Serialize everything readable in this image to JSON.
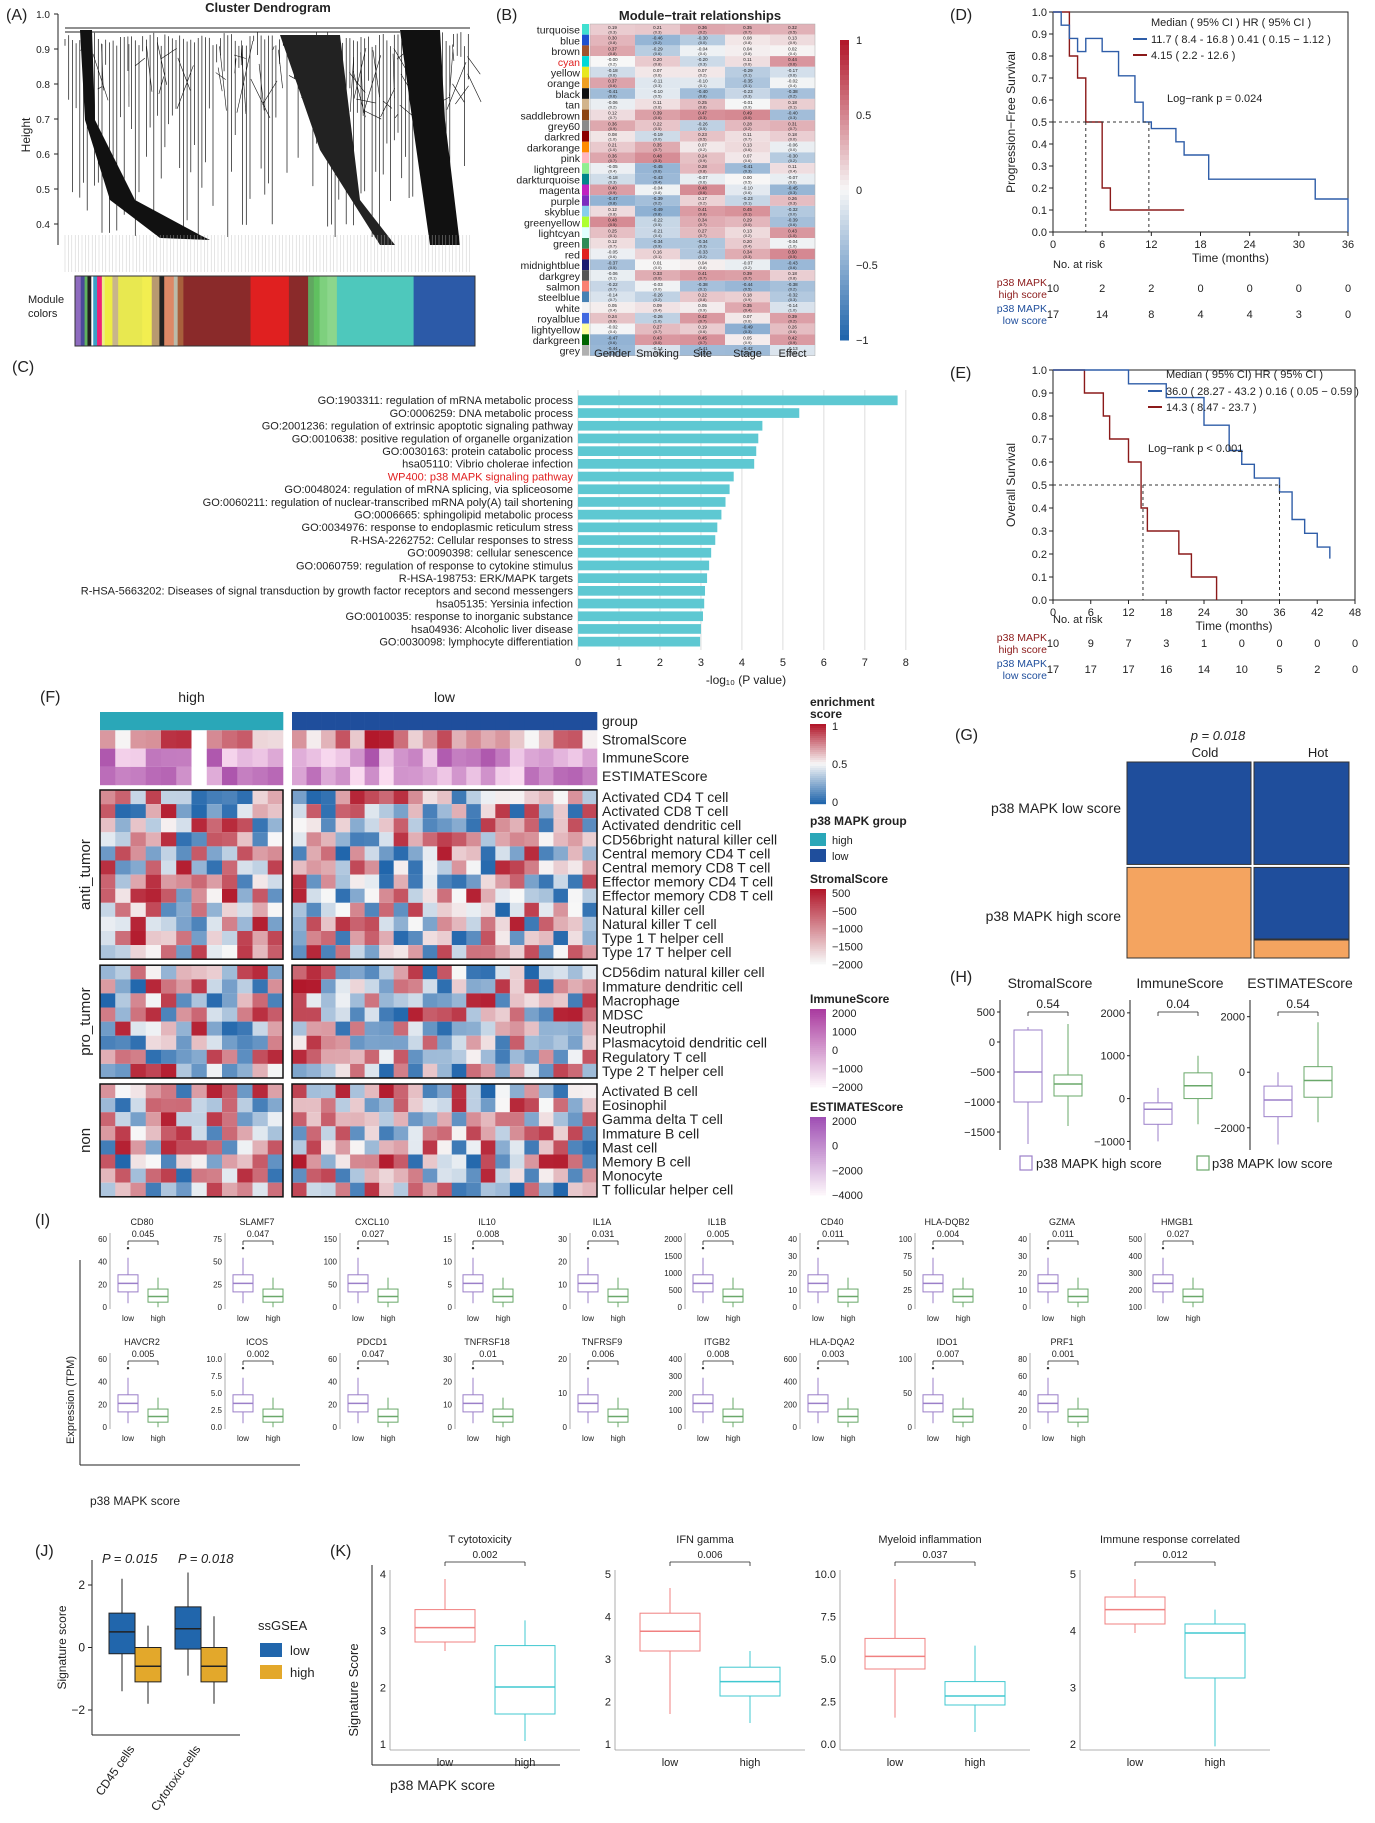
{
  "panel_labels": {
    "A": "(A)",
    "B": "(B)",
    "C": "(C)",
    "D": "(D)",
    "E": "(E)",
    "F": "(F)",
    "G": "(G)",
    "H": "(H)",
    "I": "(I)",
    "J": "(J)",
    "K": "(K)"
  },
  "colors": {
    "high_red": "#8b1a1a",
    "low_blue": "#2f5da8",
    "teal": "#2aa7b8",
    "navy": "#1f4e9c",
    "orange": "#f4a460",
    "bar": "#5ec8d2",
    "purple": "#9b7fc9",
    "green": "#6aa86a",
    "salmon": "#f08080",
    "cyan": "#40c8d0",
    "j_low": "#2166ac",
    "j_high": "#e3a82b"
  },
  "panelA": {
    "title": "Cluster Dendrogram",
    "ylabel": "Height",
    "yticks": [
      "1.0",
      "0.9",
      "0.8",
      "0.7",
      "0.6",
      "0.5",
      "0.4"
    ],
    "module_label": [
      "Module",
      "colors"
    ],
    "colorbar": [
      "#8e6bbf",
      "#4a4a9a",
      "#5fb35f",
      "#222",
      "#fff",
      "#3aa0c8",
      "#e27",
      "#ee8",
      "#ee4",
      "#c8b58c",
      "#e8e850",
      "#f2ee50",
      "#b89a70",
      "#222",
      "#dd8866",
      "#bba",
      "#a8603c",
      "#8a2a2a",
      "#8a2a2a",
      "#8a2a2a",
      "#e02020",
      "#e02020",
      "#8a2a2a",
      "#60a860",
      "#60c060",
      "#7ed07e",
      "#8cd68c",
      "#4ec8bc",
      "#4ec8bc",
      "#4ec8bc",
      "#4ec8bc",
      "#2c5aa8"
    ]
  },
  "panelB": {
    "title": "Module−trait relationships",
    "modules": [
      "turquoise",
      "blue",
      "brown",
      "cyan",
      "yellow",
      "orange",
      "black",
      "tan",
      "saddlebrown",
      "grey60",
      "darkred",
      "darkorange",
      "pink",
      "lightgreen",
      "darkturquoise",
      "magenta",
      "purple",
      "skyblue",
      "greenyellow",
      "lightcyan",
      "green",
      "red",
      "midnightblue",
      "darkgrey",
      "salmon",
      "steelblue",
      "white",
      "royalblue",
      "lightyellow",
      "darkgreen",
      "grey"
    ],
    "module_colors": [
      "#40e0d0",
      "#1e50d0",
      "#a0522d",
      "#00d8d8",
      "#e8e820",
      "#f0a020",
      "#111111",
      "#d2b48c",
      "#8b4513",
      "#8a8a8a",
      "#8b0000",
      "#ff8c00",
      "#ffb6c1",
      "#90ee90",
      "#00868b",
      "#c020c0",
      "#7b2cbf",
      "#87ceeb",
      "#adff2f",
      "#e0ffff",
      "#2e8b57",
      "#e02020",
      "#191970",
      "#555555",
      "#fa8072",
      "#4682b4",
      "#f4f4f4",
      "#4169e1",
      "#ffffa0",
      "#006400",
      "#b0b0b0"
    ],
    "highlight": "cyan",
    "traits": [
      "Gender",
      "Smoking",
      "Site",
      "Stage",
      "Effect"
    ],
    "scale_ticks": [
      "1",
      "0.5",
      "0",
      "−0.5",
      "−1"
    ]
  },
  "panelC": {
    "xlabel": "-log₁₀ (P value)",
    "xticks": [
      "0",
      "1",
      "2",
      "3",
      "4",
      "5",
      "6",
      "7",
      "8"
    ],
    "terms": [
      "GO:1903311: regulation of mRNA metabolic process",
      "GO:0006259: DNA metabolic process",
      "GO:2001236: regulation of extrinsic apoptotic signaling pathway",
      "GO:0010638: positive regulation of organelle organization",
      "GO:0030163: protein catabolic process",
      "hsa05110: Vibrio cholerae infection",
      "WP400: p38 MAPK signaling pathway",
      "GO:0048024: regulation of mRNA splicing, via spliceosome",
      "GO:0060211: regulation of nuclear-transcribed mRNA poly(A) tail shortening",
      "GO:0006665: sphingolipid metabolic process",
      "GO:0034976: response to endoplasmic reticulum stress",
      "R-HSA-2262752: Cellular responses to stress",
      "GO:0090398: cellular senescence",
      "GO:0060759: regulation of response to cytokine stimulus",
      "R-HSA-198753: ERK/MAPK targets",
      "R-HSA-5663202: Diseases of signal transduction by growth factor receptors and second messengers",
      "hsa05135: Yersinia infection",
      "GO:0010035: response to inorganic substance",
      "hsa04936: Alcoholic liver disease",
      "GO:0030098: lymphocyte differentiation"
    ],
    "highlight_index": 6
  },
  "panelD": {
    "ylabel": "Progression−Free Survival",
    "xlabel": "Time (months)",
    "xticks": [
      "0",
      "6",
      "12",
      "18",
      "24",
      "30",
      "36"
    ],
    "yticks": [
      "1.0",
      "0.9",
      "0.8",
      "0.7",
      "0.6",
      "0.5",
      "0.4",
      "0.3",
      "0.2",
      "0.1",
      "0.0"
    ],
    "legend_header": "Median ( 95% CI )   HR ( 95% CI )",
    "legend_low": "11.7 ( 8.4 - 16.8 )   0.41 ( 0.15 − 1.12 )",
    "legend_high": "4.15 ( 2.2 - 12.6 )",
    "pvalue": "Log−rank  p = 0.024",
    "risk_title": "No. at risk",
    "high_label": [
      "p38 MAPK",
      "high score"
    ],
    "low_label": [
      "p38 MAPK",
      "low score"
    ],
    "risk_high": [
      "10",
      "2",
      "2",
      "0",
      "0",
      "0",
      "0"
    ],
    "risk_low": [
      "17",
      "14",
      "8",
      "4",
      "4",
      "3",
      "0"
    ]
  },
  "panelE": {
    "ylabel": "Overall Survival",
    "xlabel": "Time (months)",
    "xticks": [
      "0",
      "6",
      "12",
      "18",
      "24",
      "30",
      "36",
      "42",
      "48"
    ],
    "yticks": [
      "1.0",
      "0.9",
      "0.8",
      "0.7",
      "0.6",
      "0.5",
      "0.4",
      "0.3",
      "0.2",
      "0.1",
      "0.0"
    ],
    "legend_header": "Median ( 95% CI)    HR ( 95% CI )",
    "legend_low": "36.0 ( 28.27 - 43.2 )  0.16 ( 0.05 − 0.59 )",
    "legend_high": "14.3 ( 8.47 - 23.7 )",
    "pvalue": "Log−rank  p < 0.001",
    "risk_title": "No. at risk",
    "high_label": [
      "p38 MAPK",
      "high score"
    ],
    "low_label": [
      "p38 MAPK",
      "low score"
    ],
    "risk_high": [
      "10",
      "9",
      "7",
      "3",
      "1",
      "0",
      "0",
      "0",
      "0"
    ],
    "risk_low": [
      "17",
      "17",
      "17",
      "16",
      "14",
      "10",
      "5",
      "2",
      "0"
    ]
  },
  "panelF": {
    "group_high": "high",
    "group_low": "low",
    "annot_rows": [
      "group",
      "StromalScore",
      "ImmuneScore",
      "ESTIMATEScore"
    ],
    "sections": [
      {
        "name": "anti_tumor",
        "cells": [
          "Activated CD4 T cell",
          "Activated CD8 T cell",
          "Activated dendritic cell",
          "CD56bright natural killer cell",
          "Central memory CD4 T cell",
          "Central memory CD8 T cell",
          "Effector memory CD4 T cell",
          "Effector memory CD8 T cell",
          "Natural killer cell",
          "Natural killer T cell",
          "Type 1 T helper cell",
          "Type 17 T helper cell"
        ]
      },
      {
        "name": "pro_tumor",
        "cells": [
          "CD56dim natural killer cell",
          "Immature dendritic cell",
          "Macrophage",
          "MDSC",
          "Neutrophil",
          "Plasmacytoid dendritic cell",
          "Regulatory T cell",
          "Type 2 T helper cell"
        ]
      },
      {
        "name": "non",
        "cells": [
          "Activated B cell",
          "Eosinophil",
          "Gamma delta T cell",
          "Immature  B cell",
          "Mast cell",
          "Memory B cell",
          "Monocyte",
          "T follicular helper cell"
        ]
      }
    ],
    "legend": {
      "enrich_title": [
        "enrichment",
        "score"
      ],
      "enrich_ticks": [
        "1",
        "0.5",
        "0"
      ],
      "group_title": "p38 MAPK group",
      "group_items": [
        "high",
        "low"
      ],
      "stromal_title": "StromalScore",
      "stromal_ticks": [
        "500",
        "−500",
        "−1000",
        "−1500",
        "−2000"
      ],
      "immune_title": "ImmuneScore",
      "immune_ticks": [
        "2000",
        "1000",
        "0",
        "−1000",
        "−2000"
      ],
      "estimate_title": "ESTIMATEScore",
      "estimate_ticks": [
        "2000",
        "0",
        "−2000",
        "−4000"
      ]
    }
  },
  "panelG": {
    "pvalue": "p = 0.018",
    "cols": [
      "Cold",
      "Hot"
    ],
    "rows": [
      "p38 MAPK low score",
      "p38 MAPK high score"
    ]
  },
  "panelH": {
    "titles": [
      "StromalScore",
      "ImmuneScore",
      "ESTIMATEScore"
    ],
    "pvalues": [
      "0.54",
      "0.04",
      "0.54"
    ],
    "yticks": [
      [
        "500",
        "0",
        "−500",
        "−1000",
        "−1500"
      ],
      [
        "2000",
        "1000",
        "0",
        "−1000"
      ],
      [
        "2000",
        "0",
        "−2000"
      ]
    ],
    "legend": [
      "p38 MAPK high score",
      "p38 MAPK low score"
    ]
  },
  "panelI": {
    "ylabel": "Expression (TPM)",
    "xlabel": "p38 MAPK score",
    "groups": [
      "low",
      "high"
    ],
    "genes": [
      {
        "name": "CD80",
        "p": "0.045",
        "yticks": [
          "60",
          "40",
          "20",
          "0"
        ]
      },
      {
        "name": "SLAMF7",
        "p": "0.047",
        "yticks": [
          "75",
          "50",
          "25",
          "0"
        ]
      },
      {
        "name": "CXCL10",
        "p": "0.027",
        "yticks": [
          "150",
          "100",
          "50",
          "0"
        ]
      },
      {
        "name": "IL10",
        "p": "0.008",
        "yticks": [
          "15",
          "10",
          "5",
          "0"
        ]
      },
      {
        "name": "IL1A",
        "p": "0.031",
        "yticks": [
          "30",
          "20",
          "10",
          "0"
        ]
      },
      {
        "name": "IL1B",
        "p": "0.005",
        "yticks": [
          "2000",
          "1500",
          "1000",
          "500",
          "0"
        ]
      },
      {
        "name": "CD40",
        "p": "0.011",
        "yticks": [
          "40",
          "30",
          "20",
          "10",
          "0"
        ]
      },
      {
        "name": "HLA-DQB2",
        "p": "0.004",
        "yticks": [
          "100",
          "75",
          "50",
          "25",
          "0"
        ]
      },
      {
        "name": "GZMA",
        "p": "0.011",
        "yticks": [
          "40",
          "30",
          "20",
          "10",
          "0"
        ]
      },
      {
        "name": "HMGB1",
        "p": "0.027",
        "yticks": [
          "500",
          "400",
          "300",
          "200",
          "100"
        ]
      },
      {
        "name": "HAVCR2",
        "p": "0.005",
        "yticks": [
          "60",
          "40",
          "20",
          "0"
        ]
      },
      {
        "name": "ICOS",
        "p": "0.002",
        "yticks": [
          "10.0",
          "7.5",
          "5.0",
          "2.5",
          "0.0"
        ]
      },
      {
        "name": "PDCD1",
        "p": "0.047",
        "yticks": [
          "60",
          "40",
          "20",
          "0"
        ]
      },
      {
        "name": "TNFRSF18",
        "p": "0.01",
        "yticks": [
          "30",
          "20",
          "10",
          "0"
        ]
      },
      {
        "name": "TNFRSF9",
        "p": "0.006",
        "yticks": [
          "20",
          "10",
          "0"
        ]
      },
      {
        "name": "ITGB2",
        "p": "0.008",
        "yticks": [
          "400",
          "300",
          "200",
          "100",
          "0"
        ]
      },
      {
        "name": "HLA-DQA2",
        "p": "0.003",
        "yticks": [
          "600",
          "400",
          "200",
          "0"
        ]
      },
      {
        "name": "IDO1",
        "p": "0.007",
        "yticks": [
          "100",
          "50",
          "0"
        ]
      },
      {
        "name": "PRF1",
        "p": "0.001",
        "yticks": [
          "80",
          "60",
          "40",
          "20",
          "0"
        ]
      }
    ]
  },
  "panelJ": {
    "ylabel": "Signature score",
    "yticks": [
      "2",
      "0",
      "−2"
    ],
    "p1": "P = 0.015",
    "p2": "P = 0.018",
    "categories": [
      "CD45 cells",
      "Cytotoxic cells"
    ],
    "legend_title": "ssGSEA",
    "legend_items": [
      "low",
      "high"
    ]
  },
  "panelK": {
    "ylabel": "Signature Score",
    "xlabel": "p38 MAPK score",
    "groups": [
      "low",
      "high"
    ],
    "plots": [
      {
        "title": "T cytotoxicity",
        "p": "0.002",
        "yticks": [
          "4",
          "3",
          "2",
          "1"
        ]
      },
      {
        "title": "IFN gamma",
        "p": "0.006",
        "yticks": [
          "5",
          "4",
          "3",
          "2",
          "1"
        ]
      },
      {
        "title": "Myeloid inflammation",
        "p": "0.037",
        "yticks": [
          "10.0",
          "7.5",
          "5.0",
          "2.5",
          "0.0"
        ]
      },
      {
        "title": "Immune response correlated",
        "p": "0.012",
        "yticks": [
          "5",
          "4",
          "3",
          "2"
        ]
      }
    ]
  },
  "chart_data": [
    {
      "type": "bar",
      "title": "",
      "xlabel": "-log₁₀ (P value)",
      "xlim": [
        0,
        8.2
      ],
      "categories": [
        "GO:1903311",
        "GO:0006259",
        "GO:2001236",
        "GO:0010638",
        "GO:0030163",
        "hsa05110",
        "WP400",
        "GO:0048024",
        "GO:0060211",
        "GO:0006665",
        "GO:0034976",
        "R-HSA-2262752",
        "GO:0090398",
        "GO:0060759",
        "R-HSA-198753",
        "R-HSA-5663202",
        "hsa05135",
        "GO:0010035",
        "hsa04936",
        "GO:0030098"
      ],
      "values": [
        7.8,
        5.4,
        4.5,
        4.4,
        4.35,
        4.3,
        3.8,
        3.7,
        3.6,
        3.5,
        3.4,
        3.35,
        3.25,
        3.2,
        3.15,
        3.1,
        3.08,
        3.05,
        3.0,
        2.98
      ]
    },
    {
      "type": "line",
      "title": "",
      "xlabel": "Time (months)",
      "ylabel": "Progression−Free Survival",
      "xlim": [
        0,
        36
      ],
      "ylim": [
        0,
        1
      ],
      "series": [
        {
          "name": "p38 MAPK high score",
          "x": [
            0,
            2,
            3,
            4,
            6,
            7,
            12,
            16
          ],
          "y": [
            1.0,
            0.8,
            0.7,
            0.5,
            0.2,
            0.1,
            0.1,
            0.1
          ]
        },
        {
          "name": "p38 MAPK low score",
          "x": [
            0,
            1,
            2,
            3,
            4,
            6,
            8,
            10,
            11,
            12,
            15,
            16,
            19,
            24,
            32,
            35,
            36
          ],
          "y": [
            1.0,
            0.94,
            0.88,
            0.82,
            0.88,
            0.82,
            0.71,
            0.59,
            0.5,
            0.47,
            0.41,
            0.35,
            0.24,
            0.24,
            0.15,
            0.15,
            0.0
          ]
        }
      ]
    },
    {
      "type": "line",
      "title": "",
      "xlabel": "Time (months)",
      "ylabel": "Overall Survival",
      "xlim": [
        0,
        48
      ],
      "ylim": [
        0,
        1
      ],
      "series": [
        {
          "name": "p38 MAPK high score",
          "x": [
            0,
            5,
            8,
            9,
            12,
            14,
            15,
            20,
            22,
            24,
            26
          ],
          "y": [
            1.0,
            0.9,
            0.8,
            0.7,
            0.6,
            0.4,
            0.3,
            0.2,
            0.1,
            0.1,
            0.0
          ]
        },
        {
          "name": "p38 MAPK low score",
          "x": [
            0,
            12,
            18,
            24,
            28,
            30,
            32,
            36,
            38,
            40,
            42,
            44
          ],
          "y": [
            1.0,
            0.94,
            0.88,
            0.76,
            0.65,
            0.59,
            0.53,
            0.47,
            0.35,
            0.29,
            0.23,
            0.18
          ]
        }
      ]
    },
    {
      "type": "table",
      "title": "",
      "xlabel": "",
      "ylabel": "",
      "categories": [
        "Cold",
        "Hot"
      ],
      "series": [
        {
          "name": "p38 MAPK low score",
          "values": [
            0.28,
            0.72
          ]
        },
        {
          "name": "p38 MAPK high score",
          "values": [
            0.9,
            0.1
          ]
        }
      ]
    },
    {
      "type": "bar",
      "title": "",
      "ylabel": "Signature score",
      "categories": [
        "CD45 cells",
        "Cytotoxic cells"
      ],
      "series": [
        {
          "name": "low",
          "values": [
            0.5,
            0.6
          ]
        },
        {
          "name": "high",
          "values": [
            -0.6,
            -0.6
          ]
        }
      ]
    }
  ]
}
